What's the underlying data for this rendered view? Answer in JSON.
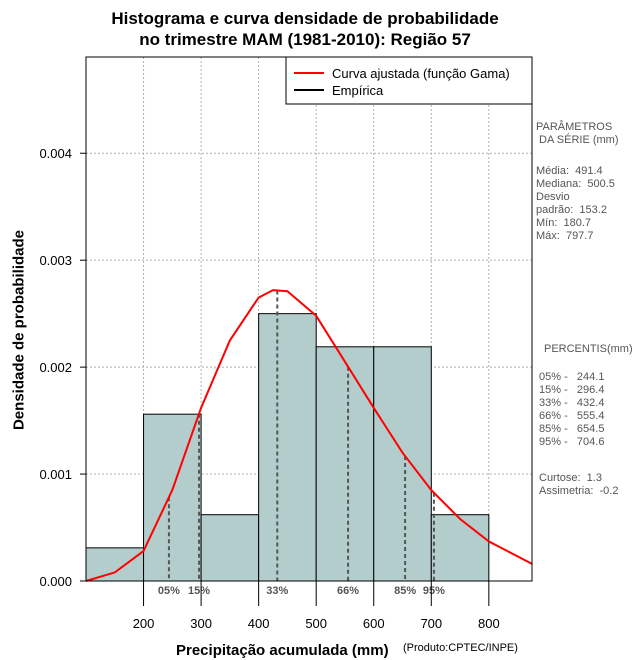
{
  "chart_data": {
    "type": "bar",
    "title": [
      "Histograma e curva densidade de probabilidade",
      "no trimestre MAM (1981-2010): Região 57"
    ],
    "xlabel": "Precipitação acumulada (mm)",
    "ylabel": "Densidade de probabilidade",
    "credit": "(Produto:CPTEC/INPE)",
    "xlim": [
      100,
      875
    ],
    "ylim": [
      0,
      0.0049
    ],
    "xticks": [
      200,
      300,
      400,
      500,
      600,
      700,
      800
    ],
    "yticks": [
      0.0,
      0.001,
      0.002,
      0.003,
      0.004
    ],
    "ytick_labels": [
      "0.000",
      "0.001",
      "0.002",
      "0.003",
      "0.004"
    ],
    "grid": true,
    "bins": [
      {
        "from": 100,
        "to": 200,
        "density": 0.00031
      },
      {
        "from": 200,
        "to": 300,
        "density": 0.00156
      },
      {
        "from": 300,
        "to": 400,
        "density": 0.00062
      },
      {
        "from": 400,
        "to": 500,
        "density": 0.0025
      },
      {
        "from": 500,
        "to": 600,
        "density": 0.00219
      },
      {
        "from": 600,
        "to": 700,
        "density": 0.00219
      },
      {
        "from": 700,
        "to": 800,
        "density": 0.00062
      }
    ],
    "gamma_curve": {
      "name": "Curva ajustada (função Gama)",
      "x": [
        100,
        150,
        200,
        250,
        300,
        350,
        400,
        425,
        450,
        500,
        550,
        600,
        650,
        700,
        750,
        800,
        875
      ],
      "y": [
        0.0,
        8e-05,
        0.00028,
        0.00085,
        0.00162,
        0.00225,
        0.00265,
        0.00272,
        0.00271,
        0.00248,
        0.00205,
        0.00162,
        0.0012,
        0.00085,
        0.00058,
        0.00037,
        0.00016
      ]
    },
    "percentile_lines": [
      {
        "label": "05%",
        "x": 244.1
      },
      {
        "label": "15%",
        "x": 296.4
      },
      {
        "label": "33%",
        "x": 432.4
      },
      {
        "label": "66%",
        "x": 555.4
      },
      {
        "label": "85%",
        "x": 654.5
      },
      {
        "label": "95%",
        "x": 704.6
      }
    ],
    "legend": {
      "position": "top-right",
      "entries": [
        {
          "label": "Curva ajustada (função Gama)",
          "color": "#ff0000"
        },
        {
          "label": "Empírica",
          "color": "#000000"
        }
      ]
    },
    "colors": {
      "bar_fill": "#b3cdcd",
      "curve": "#ff0000",
      "grid": "#b0b0b0",
      "percentile": "#555555"
    }
  },
  "parametros": {
    "title": "PARÂMETROS\n DA SÉRIE (mm)",
    "lines": "Média:  491.4\nMediana:  500.5\nDesvio\npadrão:  153.2\nMín:  180.7\nMáx:  797.7"
  },
  "percentis": {
    "title": "PERCENTIS(mm)",
    "lines": "05% -   244.1\n15% -   296.4\n33% -   432.4\n66% -   555.4\n85% -   654.5\n95% -   704.6",
    "stats": "Curtose:  1.3\nAssimetria:  -0.2"
  }
}
